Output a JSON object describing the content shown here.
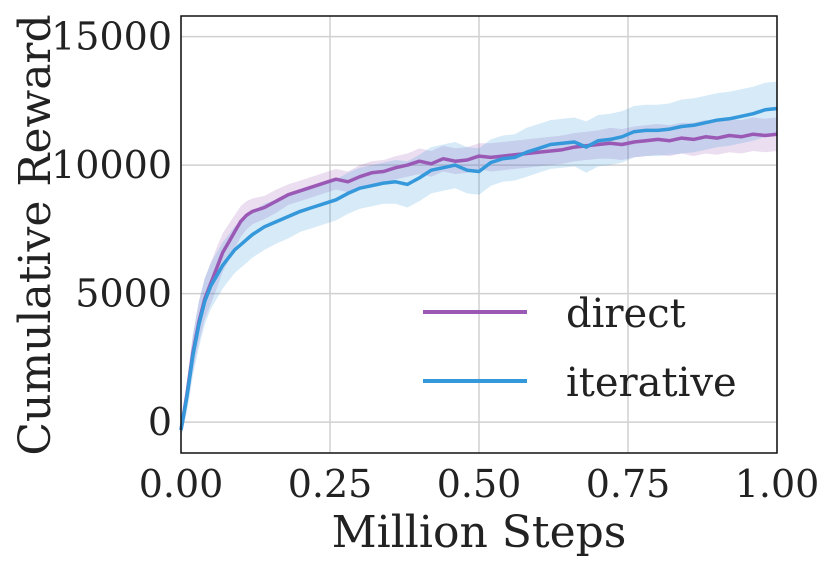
{
  "chart_data": {
    "type": "line",
    "title": "",
    "xlabel": "Million Steps",
    "ylabel": "Cumulative Reward",
    "xlim": [
      0.0,
      1.0
    ],
    "ylim": [
      -1200,
      15800
    ],
    "xticks": [
      0.0,
      0.25,
      0.5,
      0.75,
      1.0
    ],
    "xtick_labels": [
      "0.00",
      "0.25",
      "0.50",
      "0.75",
      "1.00"
    ],
    "yticks": [
      0,
      5000,
      10000,
      15000
    ],
    "ytick_labels": [
      "0",
      "5000",
      "10000",
      "15000"
    ],
    "grid": true,
    "legend_position": "bottom-right",
    "series": [
      {
        "name": "direct",
        "color": "#9b59b6",
        "x": [
          0,
          0.01,
          0.02,
          0.03,
          0.04,
          0.05,
          0.06,
          0.07,
          0.08,
          0.09,
          0.1,
          0.11,
          0.12,
          0.14,
          0.16,
          0.18,
          0.2,
          0.22,
          0.24,
          0.26,
          0.28,
          0.3,
          0.32,
          0.34,
          0.36,
          0.38,
          0.4,
          0.42,
          0.44,
          0.46,
          0.48,
          0.5,
          0.52,
          0.54,
          0.56,
          0.58,
          0.6,
          0.62,
          0.64,
          0.66,
          0.68,
          0.7,
          0.72,
          0.74,
          0.76,
          0.78,
          0.8,
          0.82,
          0.84,
          0.86,
          0.88,
          0.9,
          0.92,
          0.94,
          0.96,
          0.98,
          1.0
        ],
        "y": [
          -300,
          1100,
          2700,
          3900,
          4800,
          5400,
          6000,
          6600,
          7000,
          7400,
          7800,
          8050,
          8200,
          8350,
          8600,
          8850,
          9000,
          9150,
          9300,
          9450,
          9350,
          9550,
          9700,
          9750,
          9900,
          10000,
          10150,
          10050,
          10250,
          10150,
          10200,
          10350,
          10300,
          10350,
          10400,
          10450,
          10500,
          10550,
          10600,
          10700,
          10750,
          10800,
          10850,
          10800,
          10900,
          10950,
          11000,
          10950,
          11050,
          11000,
          11100,
          11050,
          11150,
          11100,
          11200,
          11150,
          11200
        ],
        "band": [
          300,
          500,
          700,
          800,
          800,
          800,
          800,
          750,
          700,
          650,
          600,
          550,
          500,
          450,
          450,
          400,
          400,
          400,
          400,
          400,
          400,
          450,
          450,
          450,
          450,
          450,
          500,
          500,
          500,
          500,
          500,
          500,
          550,
          550,
          550,
          550,
          550,
          550,
          550,
          550,
          550,
          550,
          600,
          600,
          600,
          600,
          600,
          600,
          600,
          650,
          650,
          650,
          650,
          650,
          650,
          650,
          650
        ]
      },
      {
        "name": "iterative",
        "color": "#3498db",
        "x": [
          0,
          0.01,
          0.02,
          0.03,
          0.04,
          0.05,
          0.06,
          0.07,
          0.08,
          0.09,
          0.1,
          0.11,
          0.12,
          0.14,
          0.16,
          0.18,
          0.2,
          0.22,
          0.24,
          0.26,
          0.28,
          0.3,
          0.32,
          0.34,
          0.36,
          0.38,
          0.4,
          0.42,
          0.44,
          0.46,
          0.48,
          0.5,
          0.52,
          0.54,
          0.56,
          0.58,
          0.6,
          0.62,
          0.64,
          0.66,
          0.68,
          0.7,
          0.72,
          0.74,
          0.76,
          0.78,
          0.8,
          0.82,
          0.84,
          0.86,
          0.88,
          0.9,
          0.92,
          0.94,
          0.96,
          0.98,
          1.0
        ],
        "y": [
          -300,
          1000,
          2600,
          3800,
          4700,
          5300,
          5700,
          6100,
          6400,
          6700,
          6900,
          7100,
          7300,
          7600,
          7800,
          8000,
          8200,
          8350,
          8500,
          8650,
          8900,
          9100,
          9200,
          9300,
          9350,
          9250,
          9500,
          9800,
          9900,
          10000,
          9800,
          9750,
          10100,
          10250,
          10300,
          10500,
          10650,
          10800,
          10850,
          10900,
          10700,
          10950,
          11000,
          11100,
          11300,
          11350,
          11350,
          11400,
          11500,
          11550,
          11650,
          11750,
          11800,
          11900,
          12000,
          12150,
          12200
        ],
        "band": [
          300,
          600,
          800,
          900,
          900,
          900,
          900,
          900,
          900,
          900,
          900,
          900,
          900,
          900,
          850,
          850,
          800,
          800,
          800,
          800,
          800,
          800,
          800,
          800,
          850,
          900,
          900,
          900,
          900,
          900,
          900,
          900,
          900,
          900,
          900,
          950,
          950,
          950,
          950,
          950,
          1000,
          1000,
          1000,
          1000,
          1000,
          1000,
          1000,
          1000,
          1050,
          1050,
          1050,
          1050,
          1050,
          1050,
          1050,
          1050,
          1050
        ]
      }
    ]
  }
}
